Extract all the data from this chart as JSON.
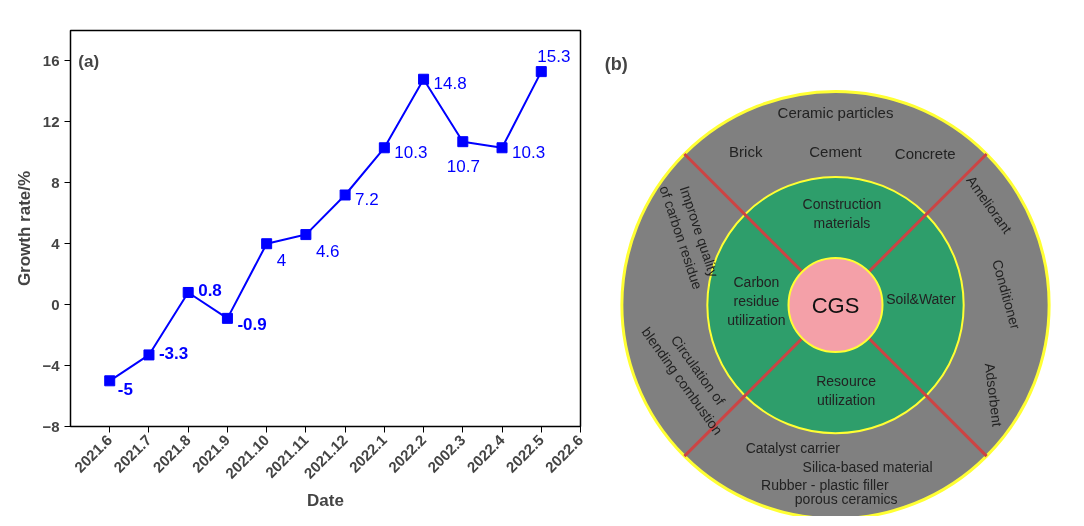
{
  "chart_data": [
    {
      "type": "line",
      "title": "(a)",
      "xlabel": "Date",
      "ylabel": "Growth rate/%",
      "categories": [
        "2021.6",
        "2021.7",
        "2021.8",
        "2021.9",
        "2021.10",
        "2021.11",
        "2021.12",
        "2022.1",
        "2022.2",
        "2002.3",
        "2022.4",
        "2022.5",
        "2022.6"
      ],
      "series": [
        {
          "color": "#0000ff",
          "values": [
            -5,
            -3.3,
            0.8,
            -0.9,
            4,
            4.6,
            7.2,
            10.3,
            14.8,
            10.7,
            10.3,
            15.3,
            null
          ]
        }
      ],
      "ylim": [
        -8,
        18
      ],
      "yticks": [
        -8,
        -4,
        0,
        4,
        8,
        12,
        16
      ],
      "marker": "square",
      "line_style": "solid",
      "data_labels": true,
      "grid": false
    },
    {
      "type": "other",
      "title": "(b)",
      "annotations": [
        "Ceramic particles",
        "Brick",
        "Cement",
        "Concrete",
        "Construction\nmaterials",
        "Carbon\nresidue\nutilization",
        "CGS",
        "Soil&Water",
        "Resource\nutilization",
        "Improve quality\nof carbon residue",
        "Circulation of\nblending combustion",
        "Ameliorant",
        "Conditioner",
        "Adsorbent",
        "Catalyst carrier",
        "Silica-based material",
        "Rubber - plastic filler",
        "porous ceramics"
      ]
    }
  ]
}
